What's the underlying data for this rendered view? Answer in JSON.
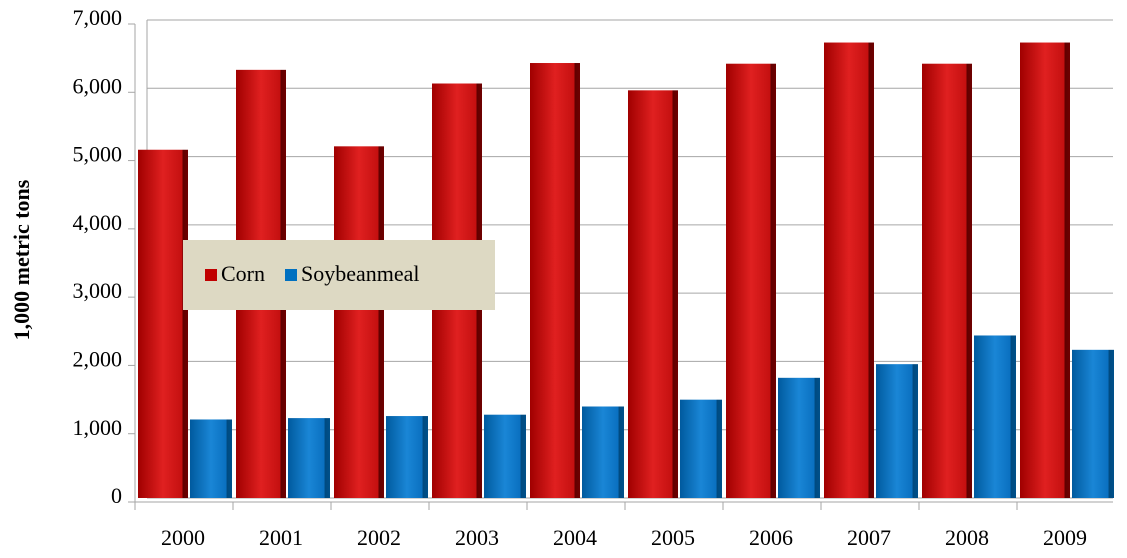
{
  "chart_data": {
    "type": "bar",
    "y_label": "1,000 metric tons",
    "categories": [
      "2000",
      "2001",
      "2002",
      "2003",
      "2004",
      "2005",
      "2006",
      "2007",
      "2008",
      "2009"
    ],
    "series": [
      {
        "name": "Corn",
        "color": "#c00000",
        "values": [
          5100,
          6270,
          5150,
          6070,
          6370,
          5970,
          6360,
          6670,
          6360,
          6670
        ]
      },
      {
        "name": "Soybeanmeal",
        "color": "#0070c0",
        "values": [
          1150,
          1170,
          1200,
          1220,
          1340,
          1440,
          1760,
          1960,
          2380,
          2170
        ]
      }
    ],
    "ylim": [
      0,
      7000
    ],
    "yticks": [
      0,
      {
        "value": 1000,
        "label": "1,000"
      },
      {
        "value": 2000,
        "label": "2,000"
      },
      {
        "value": 3000,
        "label": "3,000"
      },
      {
        "value": 4000,
        "label": "4,000"
      },
      {
        "value": 5000,
        "label": "5,000"
      },
      {
        "value": 6000,
        "label": "6,000"
      },
      {
        "value": 7000,
        "label": "7,000"
      }
    ],
    "grid": true,
    "legend": "left"
  }
}
